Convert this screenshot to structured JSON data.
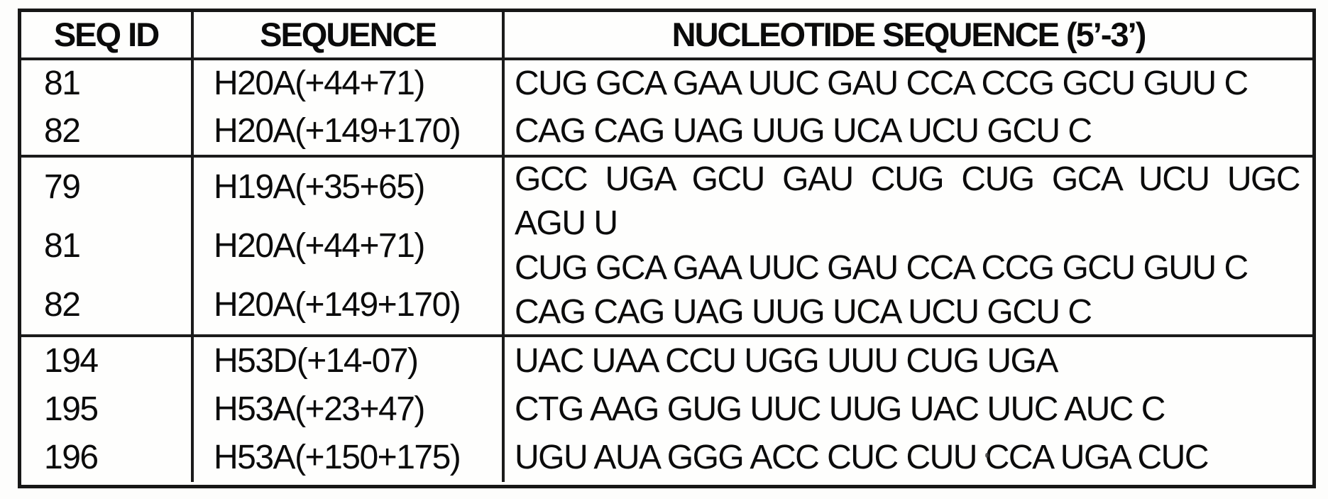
{
  "table": {
    "headers": [
      "SEQ ID",
      "SEQUENCE",
      "NUCLEOTIDE SEQUENCE (5’-3’)"
    ],
    "groups": [
      {
        "seq_ids": [
          "81",
          "82"
        ],
        "sequences": [
          "H20A(+44+71)",
          "H20A(+149+170)"
        ],
        "nucleotide_lines": [
          "CUG GCA GAA UUC GAU CCA CCG GCU GUU C",
          "CAG CAG UAG UUG UCA UCU GCU C"
        ]
      },
      {
        "seq_ids": [
          "79",
          "81",
          "82"
        ],
        "sequences": [
          "H19A(+35+65)",
          "H20A(+44+71)",
          "H20A(+149+170)"
        ],
        "nucleotide_lines": [
          "GCC UGA GCU GAU CUG CUG GCA UCU UGC",
          "AGU U",
          "CUG GCA GAA UUC GAU CCA CCG GCU GUU C",
          "CAG CAG UAG UUG UCA UCU GCU C"
        ]
      },
      {
        "seq_ids": [
          "194",
          "195",
          "196"
        ],
        "sequences": [
          "H53D(+14-07)",
          "H53A(+23+47)",
          "H53A(+150+175)"
        ],
        "nucleotide_lines": [
          "UAC UAA CCU UGG UUU CUG UGA",
          "CTG AAG GUG UUC UUG UAC UUC AUC C",
          "UGU AUA GGG ACC CUC CUU CCA UGA CUC"
        ]
      }
    ]
  }
}
